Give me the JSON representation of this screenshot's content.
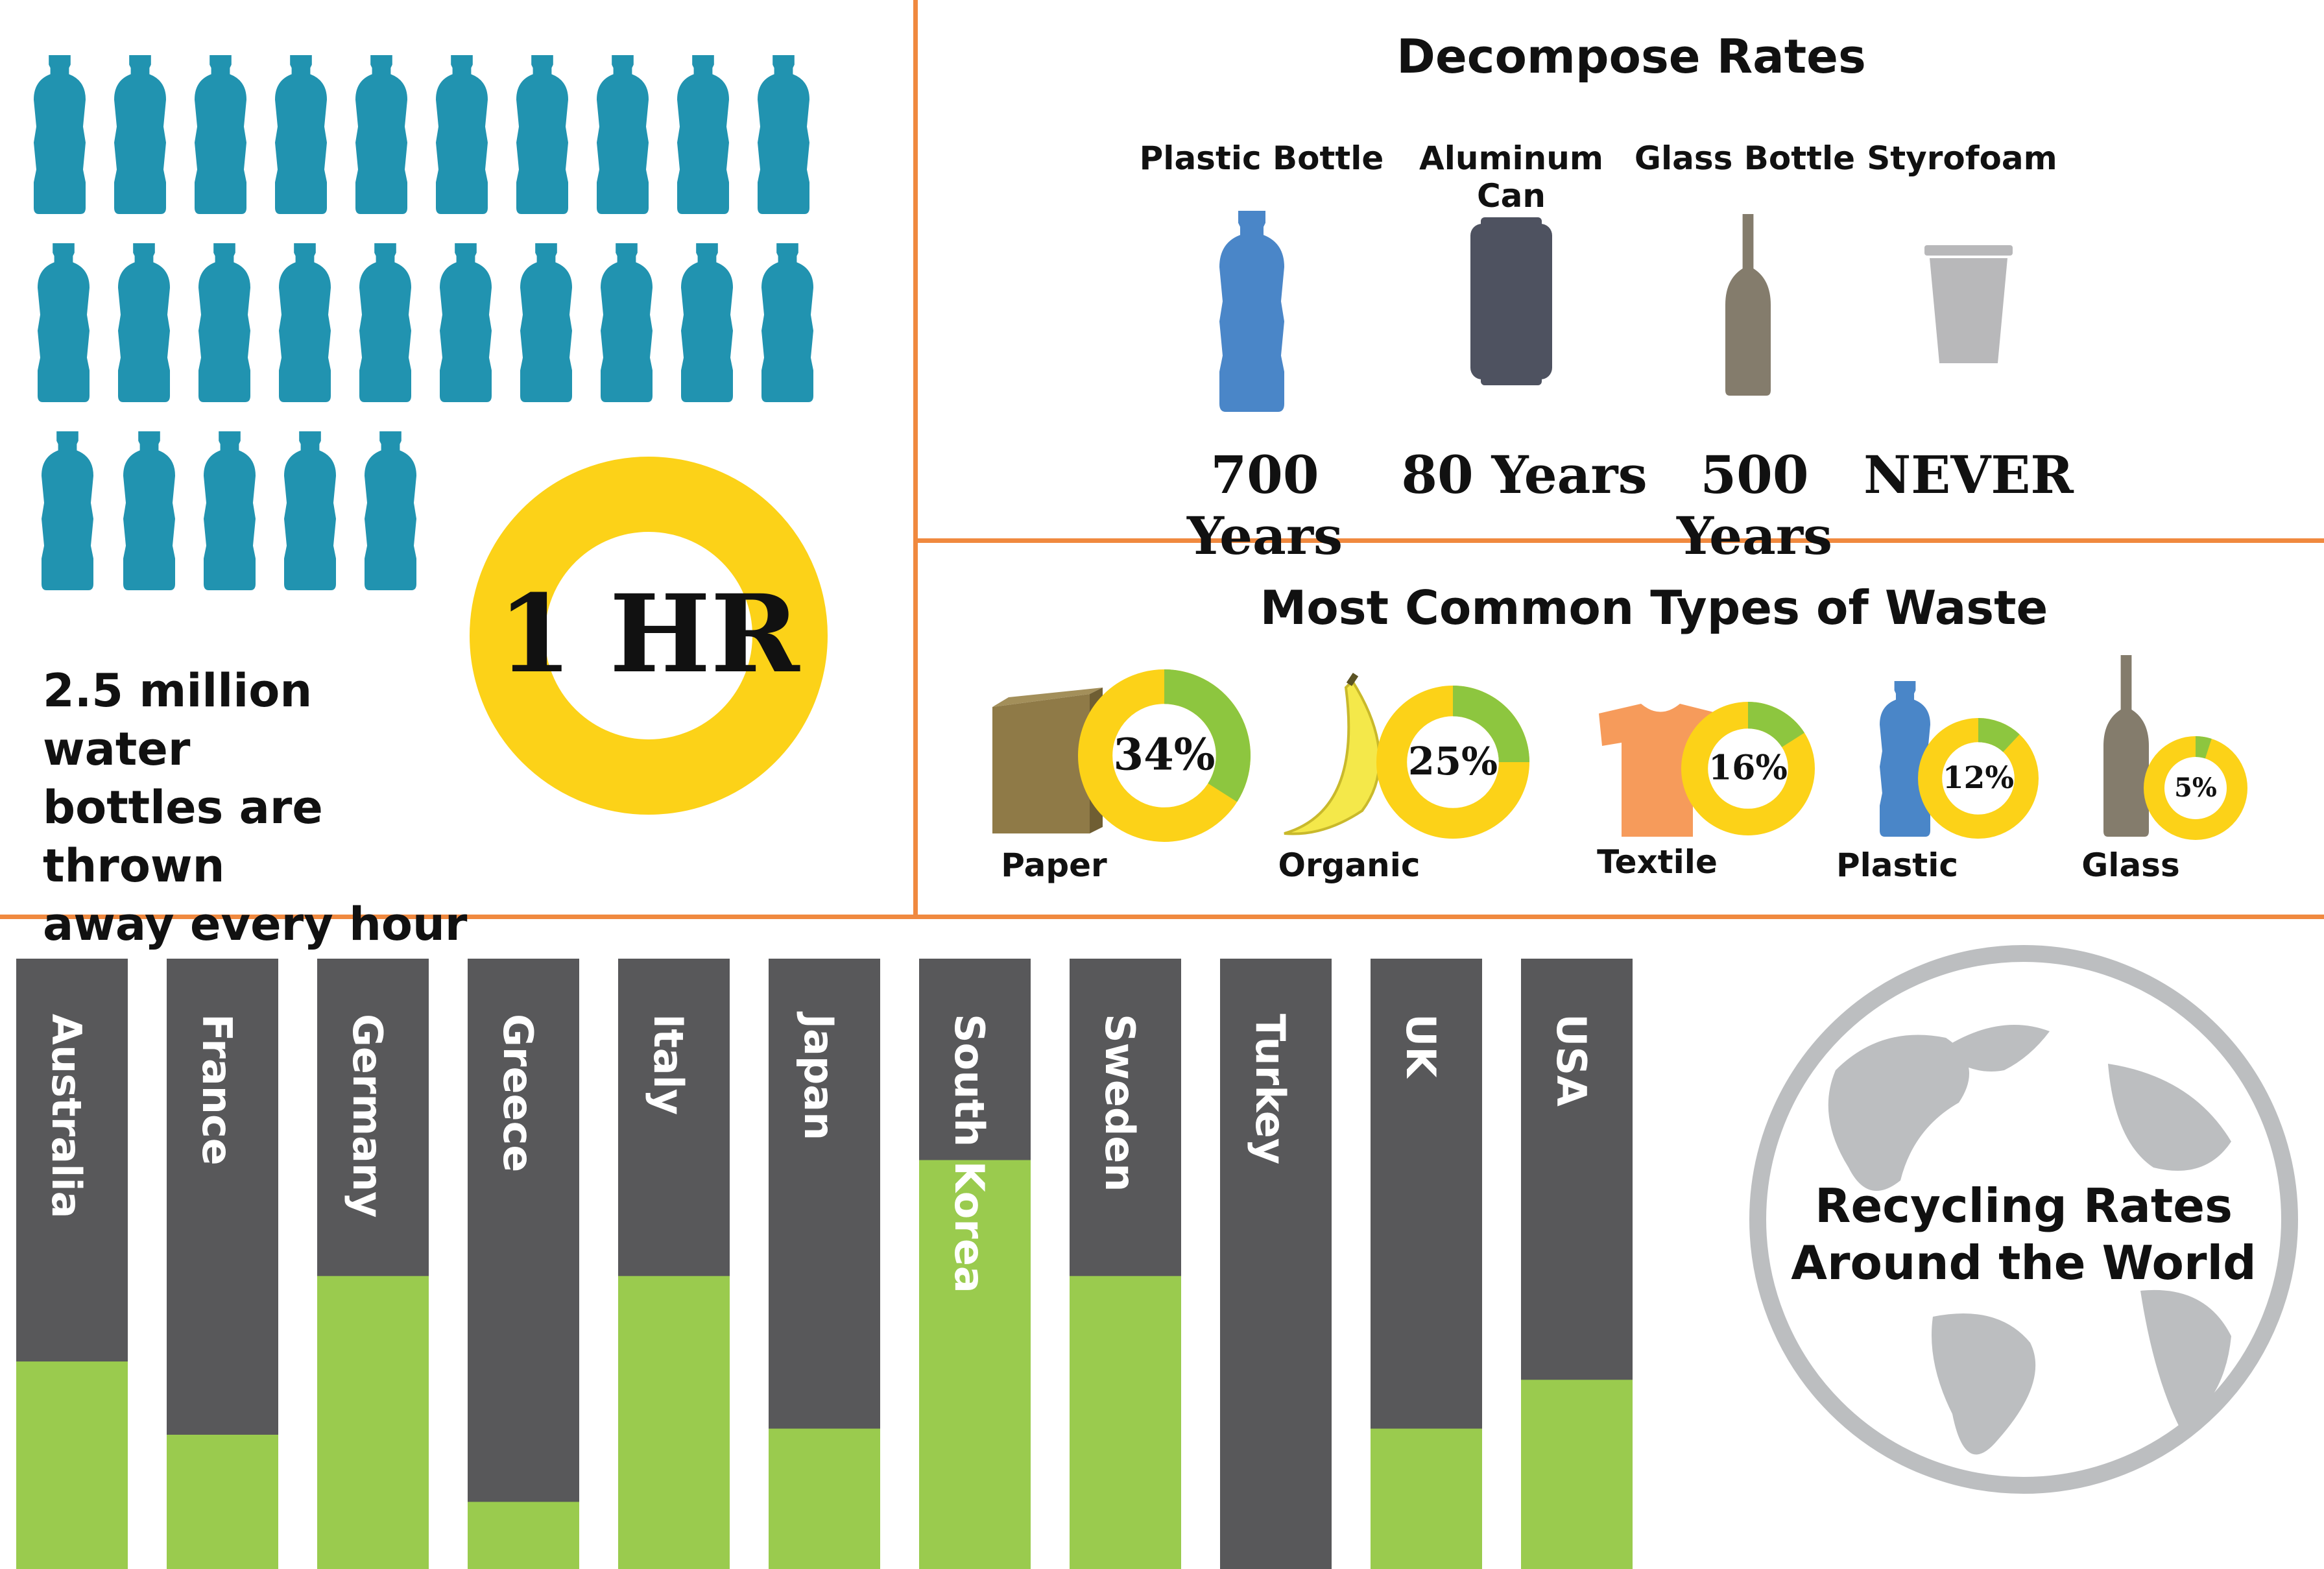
{
  "hourly_bottles": {
    "center_label": "1 HR",
    "caption_lines": [
      "2.5 million water",
      "bottles are thrown",
      "away every hour"
    ]
  },
  "decompose": {
    "title": "Decompose Rates",
    "items": [
      {
        "label": "Plastic Bottle",
        "value": "700 Years",
        "icon": "plastic-bottle-icon"
      },
      {
        "label": "Aluminum Can",
        "value": "80 Years",
        "icon": "aluminum-can-icon"
      },
      {
        "label": "Glass Bottle",
        "value": "500 Years",
        "icon": "glass-bottle-icon"
      },
      {
        "label": "Styrofoam",
        "value": "NEVER",
        "icon": "styrofoam-cup-icon"
      }
    ]
  },
  "waste": {
    "title": "Most Common Types of Waste",
    "items": [
      {
        "label": "Paper",
        "percent": 34,
        "percent_label": "34%",
        "icon": "paper-box-icon"
      },
      {
        "label": "Organic",
        "percent": 25,
        "percent_label": "25%",
        "icon": "banana-icon"
      },
      {
        "label": "Textile",
        "percent": 16,
        "percent_label": "16%",
        "icon": "tshirt-icon"
      },
      {
        "label": "Plastic",
        "percent": 12,
        "percent_label": "12%",
        "icon": "plastic-bottle-icon"
      },
      {
        "label": "Glass",
        "percent": 5,
        "percent_label": "5%",
        "icon": "glass-bottle-icon"
      }
    ]
  },
  "chart_data": {
    "type": "bar",
    "title": "Recycling Rates Around the World",
    "title_lines": [
      "Recycling Rates",
      "Around the World"
    ],
    "categories": [
      "Australia",
      "France",
      "Germany",
      "Greece",
      "Italy",
      "Japan",
      "South Korea",
      "Sweden",
      "Turkey",
      "UK",
      "USA"
    ],
    "values": [
      34,
      22,
      48,
      11,
      48,
      23,
      67,
      48,
      0,
      23,
      31
    ],
    "ylim": [
      0,
      100
    ],
    "grid": false,
    "legend": "none"
  },
  "colors": {
    "divider": "#f0893f",
    "bottle_teal": "#2193b0",
    "ring_yellow": "#fcd218",
    "donut_green": "#8dc63f",
    "bar_dark": "#58585a",
    "bar_green": "#9acb4e",
    "globe_gray": "#bcbec0",
    "plastic_blue": "#4a86c8",
    "can_dark": "#4e5260",
    "glass_brown": "#847c6c",
    "cup_gray": "#b8b8ba",
    "paper_brown": "#8f7a47",
    "banana_yellow": "#f4e84a",
    "shirt_orange": "#f69b5b"
  }
}
